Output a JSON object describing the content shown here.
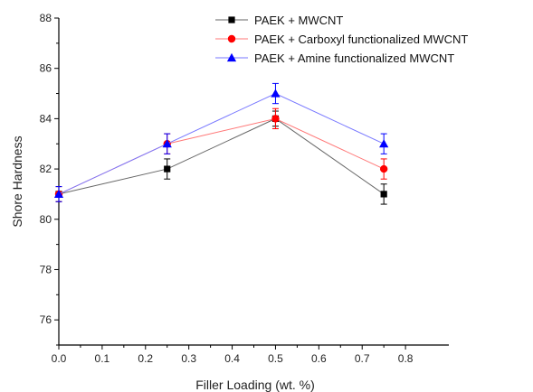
{
  "chart_data": {
    "type": "line",
    "title": "",
    "xlabel": "Filler Loading (wt. %)",
    "ylabel": "Shore Hardness",
    "xlim": [
      0.0,
      0.9
    ],
    "ylim": [
      75,
      88
    ],
    "xticks": [
      "0.0",
      "0.1",
      "0.2",
      "0.3",
      "0.4",
      "0.5",
      "0.6",
      "0.7",
      "0.8"
    ],
    "yticks": [
      "76",
      "78",
      "80",
      "82",
      "84",
      "86",
      "88"
    ],
    "grid": false,
    "legend_position": "top-right",
    "series": [
      {
        "name": "PAEK + MWCNT",
        "color": "#000000",
        "line_color": "#666666",
        "marker": "square",
        "x": [
          0.0,
          0.25,
          0.5,
          0.75
        ],
        "y": [
          81,
          82,
          84,
          81
        ],
        "error": [
          0.3,
          0.4,
          0.3,
          0.4
        ]
      },
      {
        "name": "PAEK + Carboxyl functionalized MWCNT",
        "color": "#ff0000",
        "line_color": "#ff7777",
        "marker": "circle",
        "x": [
          0.0,
          0.25,
          0.5,
          0.75
        ],
        "y": [
          81,
          83,
          84,
          82
        ],
        "error": [
          0.3,
          0.4,
          0.4,
          0.4
        ]
      },
      {
        "name": "PAEK + Amine functionalized MWCNT",
        "color": "#0000ff",
        "line_color": "#7777ff",
        "marker": "triangle",
        "x": [
          0.0,
          0.25,
          0.5,
          0.75
        ],
        "y": [
          81,
          83,
          85,
          83
        ],
        "error": [
          0.3,
          0.4,
          0.4,
          0.4
        ]
      }
    ]
  }
}
